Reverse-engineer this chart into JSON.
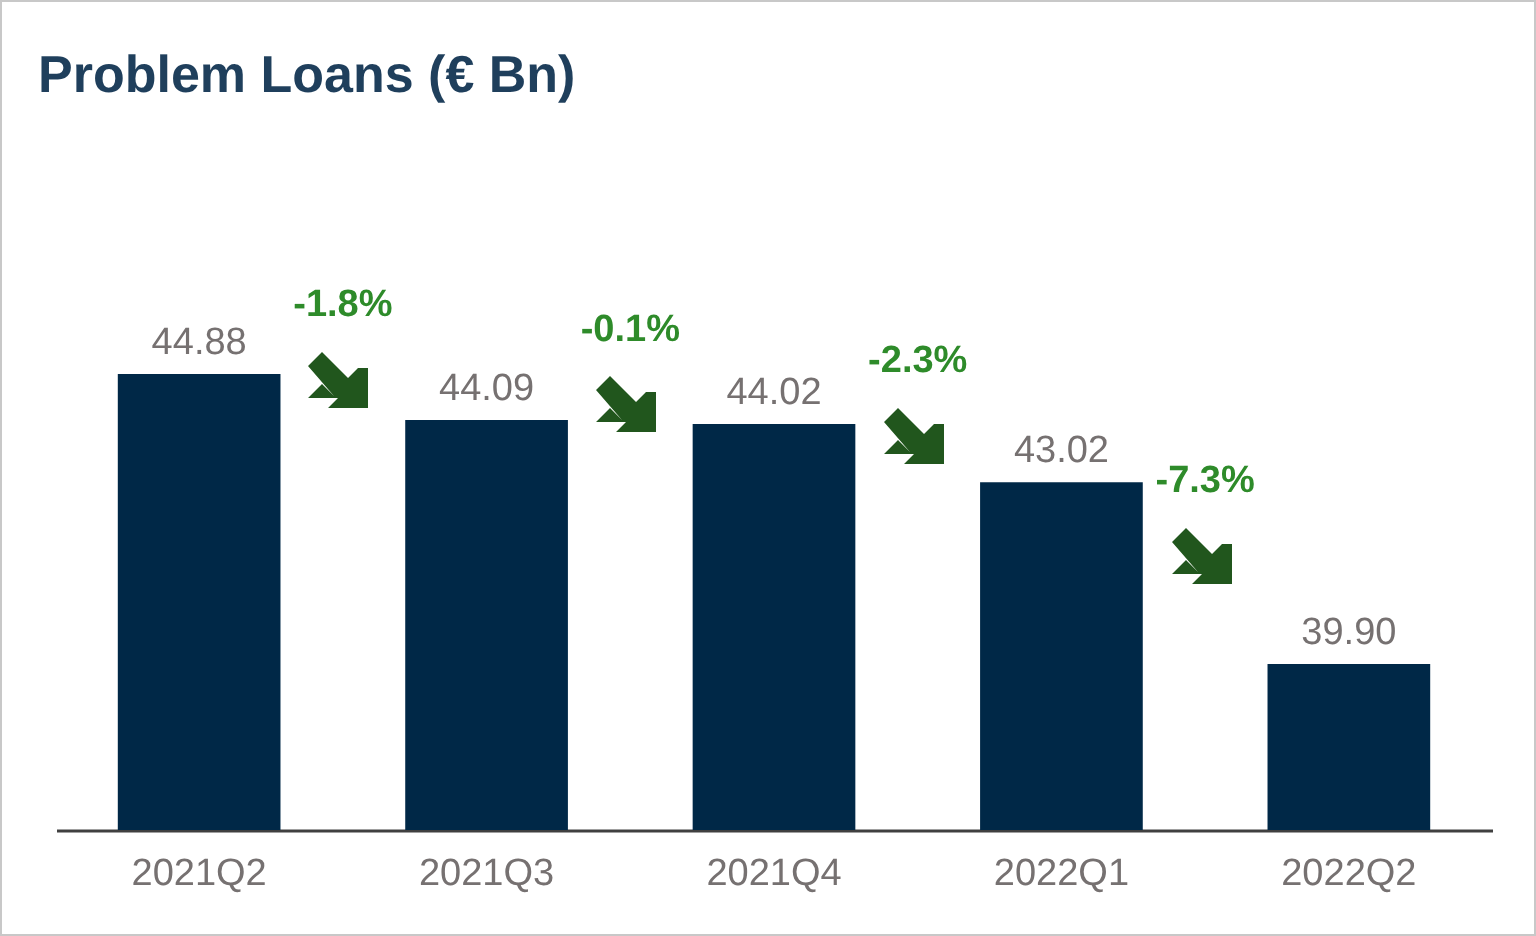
{
  "chart_data": {
    "type": "bar",
    "title": "Problem Loans (€ Bn)",
    "categories": [
      "2021Q2",
      "2021Q3",
      "2021Q4",
      "2022Q1",
      "2022Q2"
    ],
    "values": [
      44.88,
      44.09,
      44.02,
      43.02,
      39.9
    ],
    "value_labels": [
      "44.88",
      "44.09",
      "44.02",
      "43.02",
      "39.90"
    ],
    "color": "#002847",
    "ylim": [
      37.05,
      44.88
    ],
    "tick_labels": "x",
    "annotations": [
      "-1.8%",
      "-0.1%",
      "-2.3%",
      "-7.3%"
    ]
  }
}
